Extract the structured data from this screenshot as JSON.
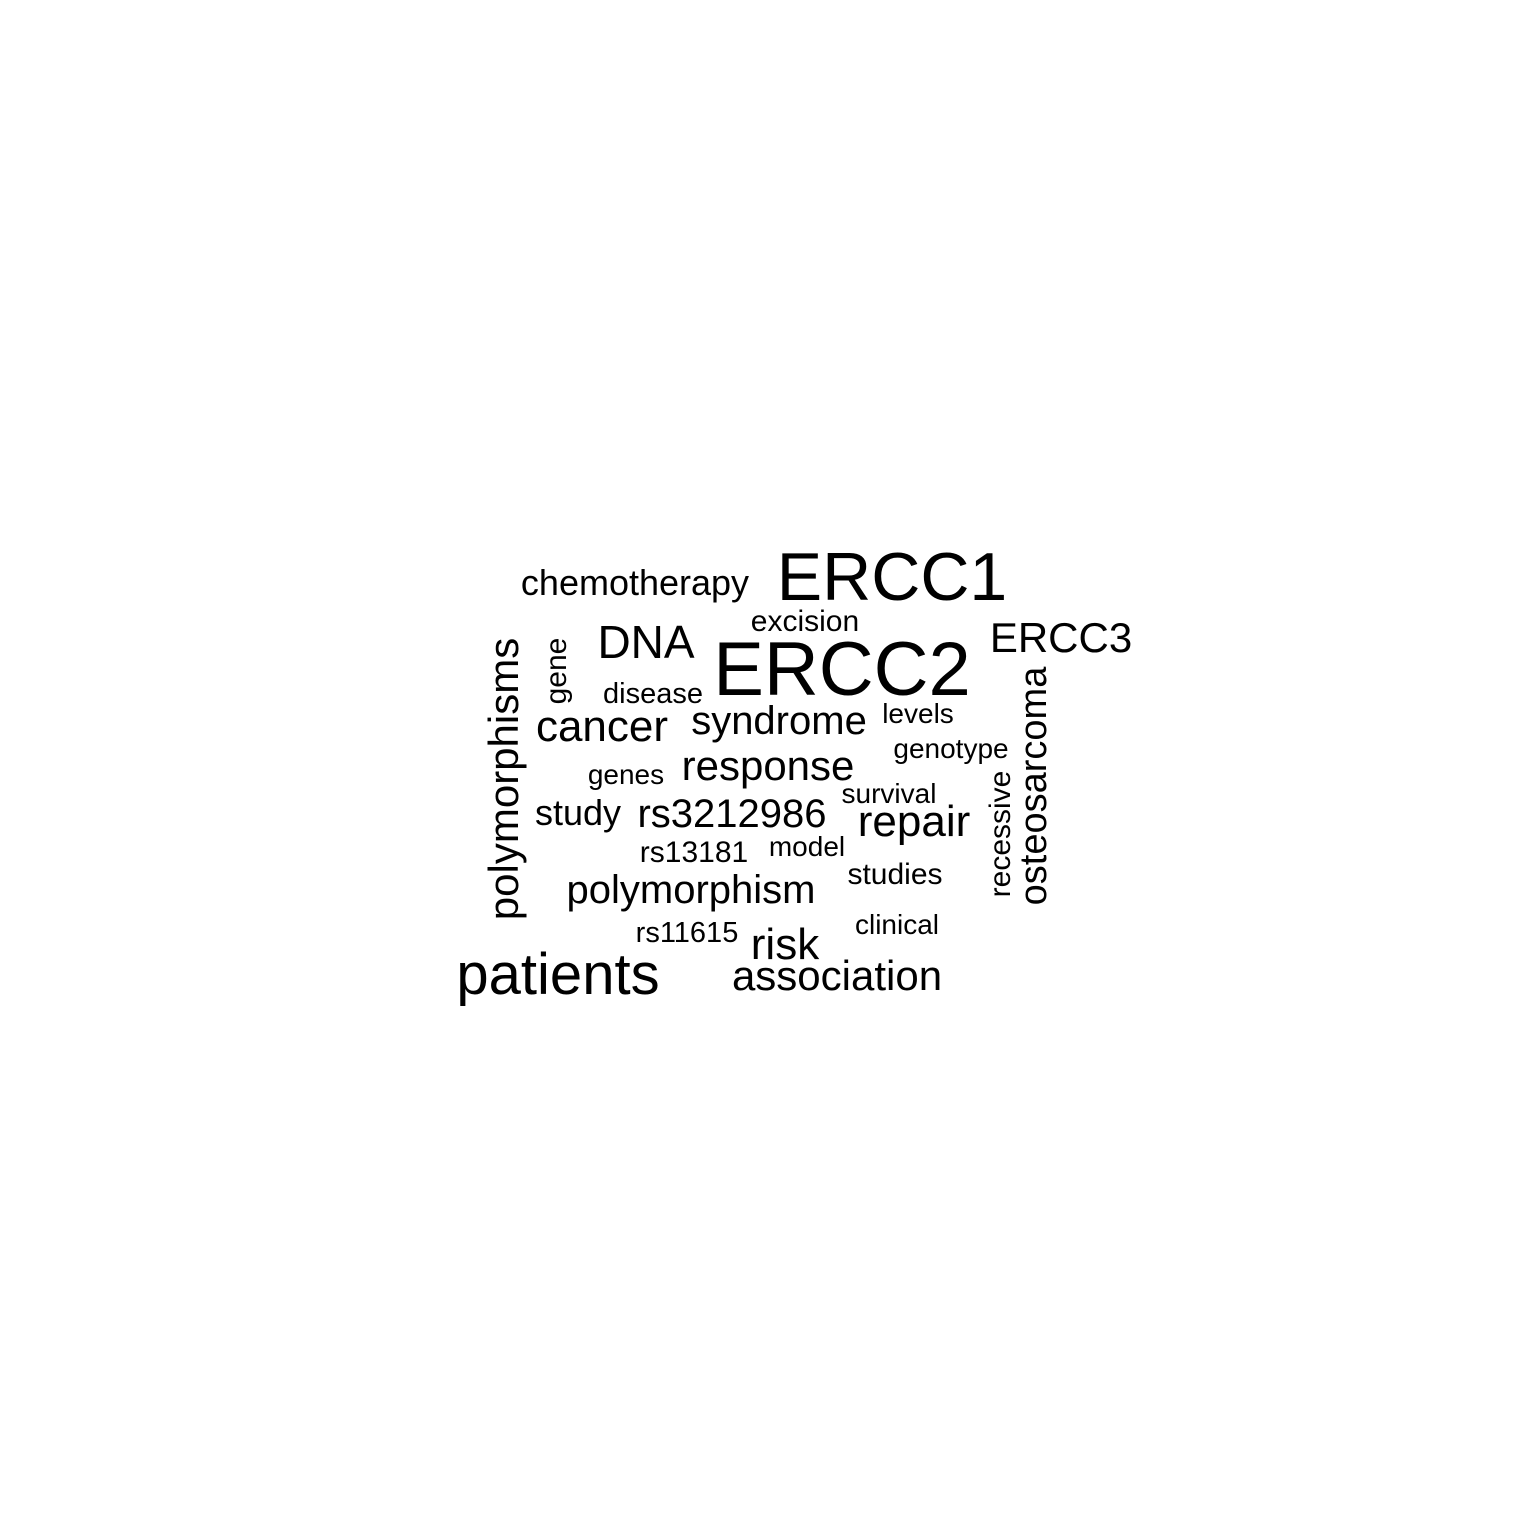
{
  "word_cloud": {
    "words": [
      {
        "text": "ERCC2",
        "vertical": false
      },
      {
        "text": "ERCC1",
        "vertical": false
      },
      {
        "text": "patients",
        "vertical": false
      },
      {
        "text": "cancer",
        "vertical": false
      },
      {
        "text": "association",
        "vertical": false
      },
      {
        "text": "polymorphisms",
        "vertical": true
      },
      {
        "text": "chemotherapy",
        "vertical": false
      },
      {
        "text": "DNA",
        "vertical": false
      },
      {
        "text": "ERCC3",
        "vertical": false
      },
      {
        "text": "syndrome",
        "vertical": false
      },
      {
        "text": "response",
        "vertical": false
      },
      {
        "text": "rs3212986",
        "vertical": false
      },
      {
        "text": "repair",
        "vertical": false
      },
      {
        "text": "polymorphism",
        "vertical": false
      },
      {
        "text": "risk",
        "vertical": false
      },
      {
        "text": "osteosarcoma",
        "vertical": true
      },
      {
        "text": "study",
        "vertical": false
      },
      {
        "text": "excision",
        "vertical": false
      },
      {
        "text": "recessive",
        "vertical": true
      },
      {
        "text": "gene",
        "vertical": true
      },
      {
        "text": "disease",
        "vertical": false
      },
      {
        "text": "genotype",
        "vertical": false
      },
      {
        "text": "genes",
        "vertical": false
      },
      {
        "text": "rs13181",
        "vertical": false
      },
      {
        "text": "studies",
        "vertical": false
      },
      {
        "text": "rs11615",
        "vertical": false
      },
      {
        "text": "levels",
        "vertical": false
      },
      {
        "text": "survival",
        "vertical": false
      },
      {
        "text": "model",
        "vertical": false
      },
      {
        "text": "clinical",
        "vertical": false
      }
    ]
  }
}
